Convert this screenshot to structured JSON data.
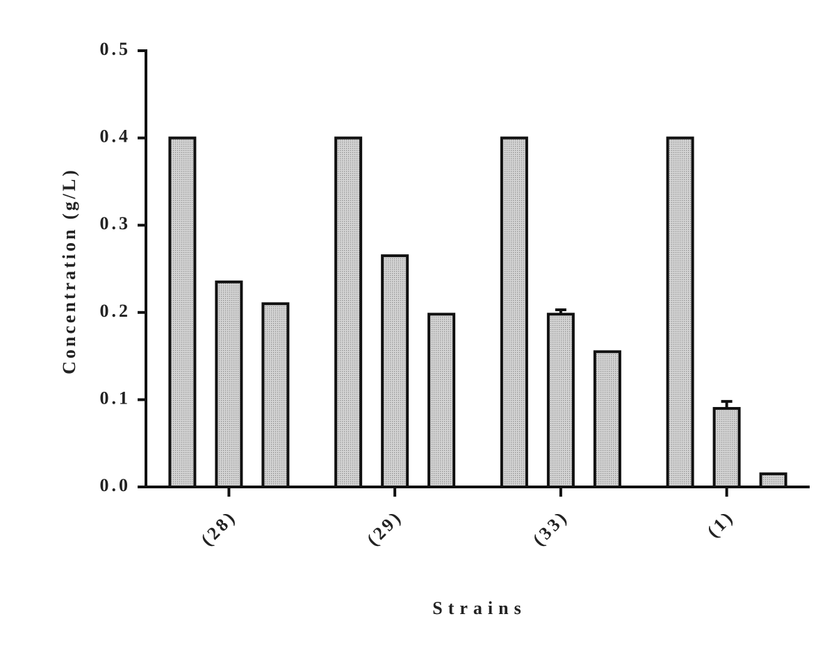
{
  "chart_data": {
    "type": "bar",
    "x_label": "Strains",
    "y_label": "Concentration (g/L)",
    "categories": [
      "(28)",
      "(29)",
      "(33)",
      "(1)"
    ],
    "series": [
      {
        "color": "#d4d4d4",
        "values": [
          0.4,
          0.4,
          0.4,
          0.4
        ]
      },
      {
        "color": "#d4d4d4",
        "values": [
          0.235,
          0.265,
          0.198,
          0.09
        ],
        "errors": [
          null,
          null,
          0.005,
          0.008
        ]
      },
      {
        "color": "#d4d4d4",
        "values": [
          0.21,
          0.198,
          0.155,
          0.015
        ]
      }
    ],
    "ylim": [
      0,
      0.5
    ],
    "yticks": [
      {
        "value": 0,
        "label": "0.0"
      },
      0.1,
      0.2,
      0.3,
      0.4,
      0.5
    ]
  }
}
